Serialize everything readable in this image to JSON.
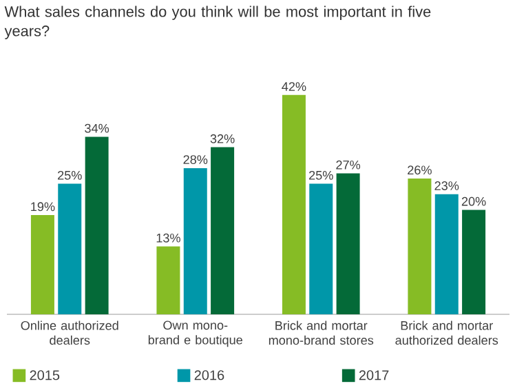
{
  "chart_data": {
    "type": "bar",
    "title": "What sales channels do you think will be most important in five years?",
    "categories": [
      "Online authorized dealers",
      "Own mono-brand e boutique",
      "Brick and mortar mono-brand stores",
      "Brick and mortar authorized dealers"
    ],
    "series": [
      {
        "name": "2015",
        "color": "#86bc25",
        "values": [
          19,
          13,
          42,
          26
        ],
        "value_labels": [
          "19%",
          "13%",
          "42%",
          "26%"
        ]
      },
      {
        "name": "2016",
        "color": "#0097a9",
        "values": [
          25,
          28,
          25,
          23
        ],
        "value_labels": [
          "25%",
          "28%",
          "25%",
          "23%"
        ]
      },
      {
        "name": "2017",
        "color": "#046a38",
        "values": [
          34,
          32,
          27,
          20
        ],
        "value_labels": [
          "34%",
          "32%",
          "27%",
          "20%"
        ]
      }
    ],
    "legend": "bottom left"
  }
}
